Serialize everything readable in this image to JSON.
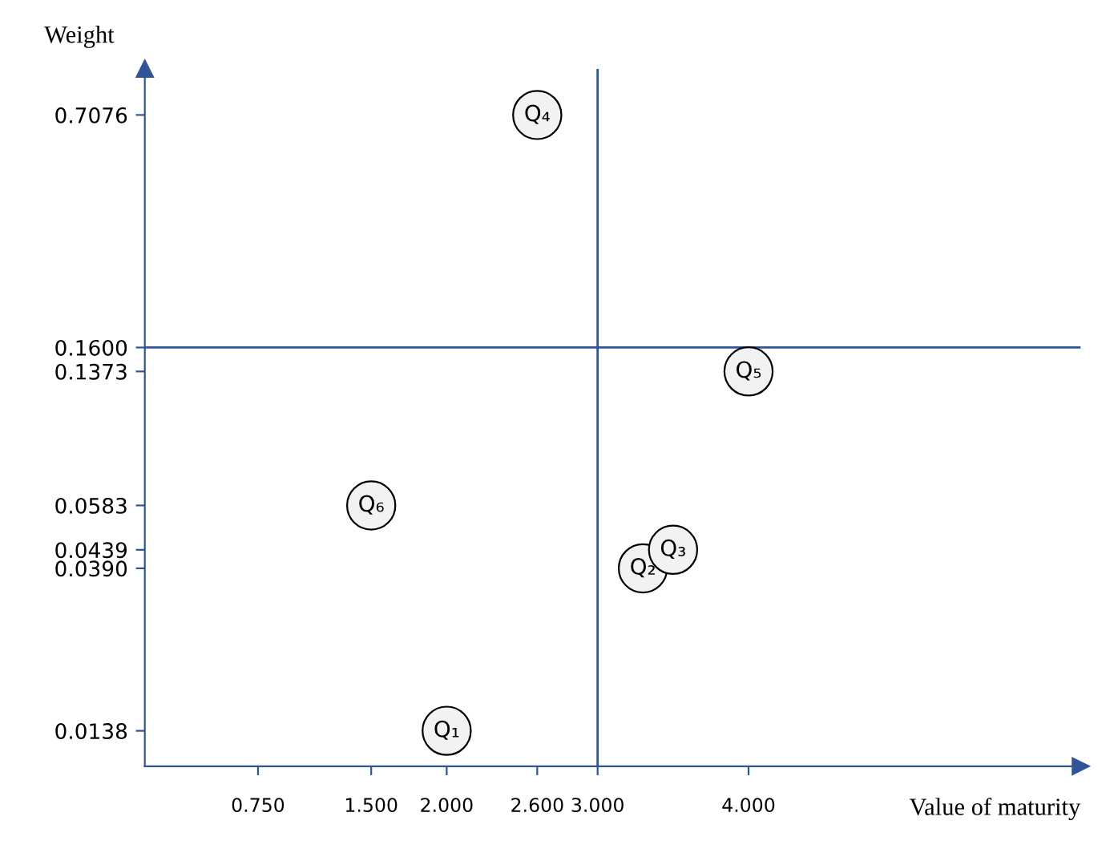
{
  "chart_data": {
    "type": "scatter",
    "xlabel": "Value of maturity",
    "ylabel": "Weight",
    "x": [
      2.0,
      3.3,
      3.5,
      2.6,
      4.0,
      1.5
    ],
    "values": [
      0.0138,
      0.039,
      0.0439,
      0.7076,
      0.1373,
      0.0583
    ],
    "color": "#f2f2f2",
    "marker": "circle",
    "log": "y",
    "xlim": [
      0,
      6.2
    ],
    "xticks": [
      {
        "value": 0.75,
        "label": "0.750"
      },
      {
        "value": 1.5,
        "label": "1.500"
      },
      {
        "value": 2.0,
        "label": "2.000"
      },
      {
        "value": 2.6,
        "label": "2.600"
      },
      {
        "value": 3.0,
        "label": "3.000"
      },
      {
        "value": 4.0,
        "label": "4.000"
      }
    ],
    "ylim": [
      0.011,
      0.95
    ],
    "yticks": [
      {
        "value": 0.0138,
        "label": "0.0138"
      },
      {
        "value": 0.039,
        "label": "0.0390"
      },
      {
        "value": 0.0439,
        "label": "0.0439"
      },
      {
        "value": 0.0583,
        "label": "0.0583"
      },
      {
        "value": 0.1373,
        "label": "0.1373"
      },
      {
        "value": 0.16,
        "label": "0.1600"
      },
      {
        "value": 0.7076,
        "label": "0.7076"
      }
    ],
    "ref_lines": [
      {
        "axis": "x",
        "value": 3.0,
        "color": "#2f5597"
      },
      {
        "axis": "y",
        "value": 0.16,
        "color": "#2f5597"
      }
    ],
    "annotations": [
      {
        "text": "Q₁",
        "x": 2.0,
        "y": 0.0138
      },
      {
        "text": "Q₂",
        "x": 3.3,
        "y": 0.039
      },
      {
        "text": "Q₃",
        "x": 3.5,
        "y": 0.0439
      },
      {
        "text": "Q₄",
        "x": 2.6,
        "y": 0.7076
      },
      {
        "text": "Q₅",
        "x": 4.0,
        "y": 0.1373
      },
      {
        "text": "Q₆",
        "x": 1.5,
        "y": 0.0583
      }
    ],
    "grid": false,
    "legend": false
  }
}
